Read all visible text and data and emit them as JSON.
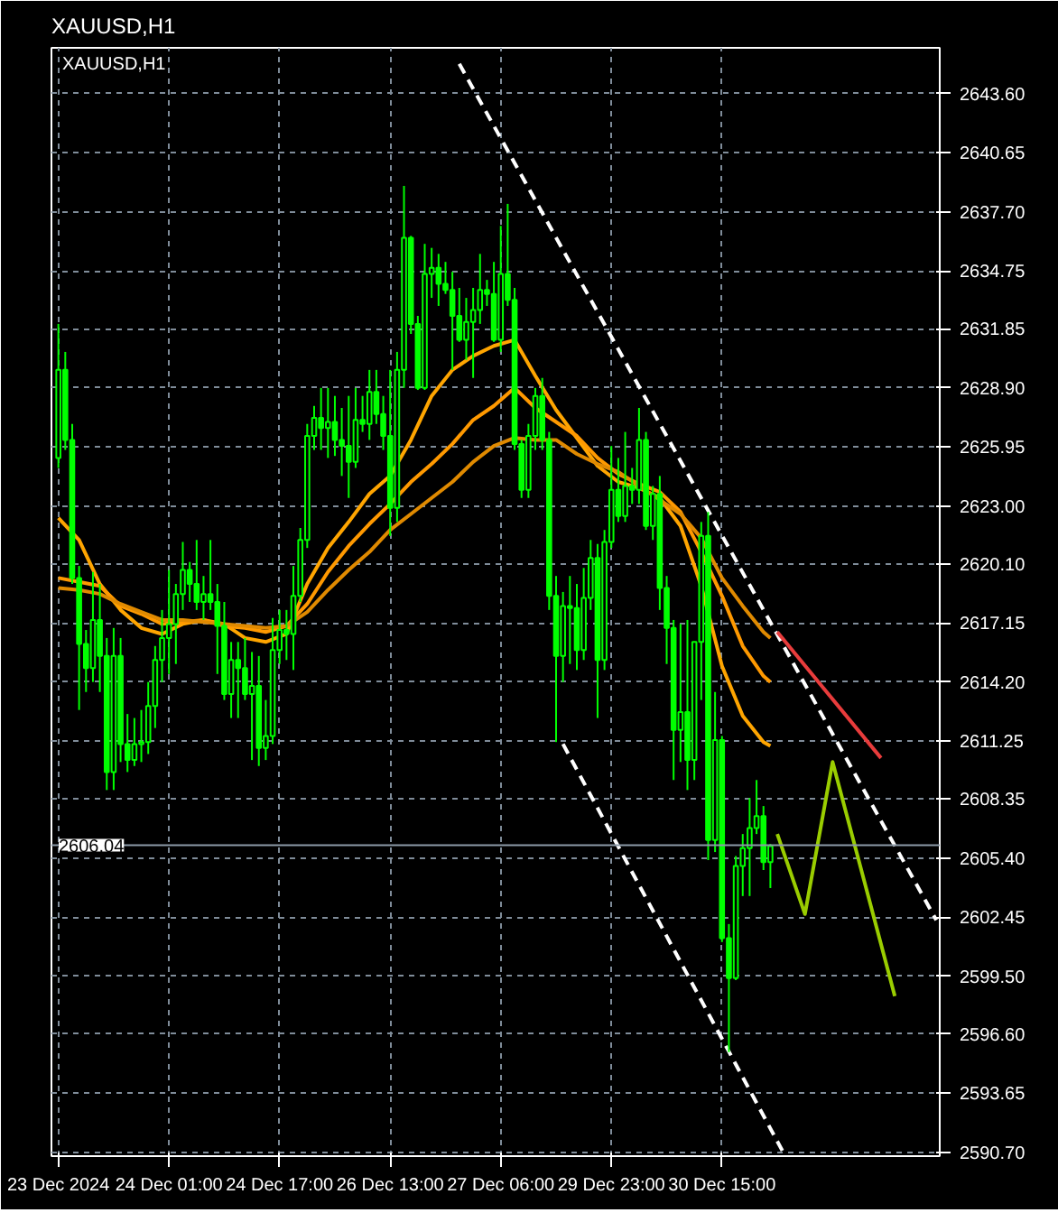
{
  "chart_data": {
    "type": "candlestick",
    "title": "XAUUSD,H1",
    "subtitle": "XAUUSD,H1",
    "color": "#00ff00",
    "categories": [
      "23 Dec 2024",
      null,
      null,
      null,
      null,
      null,
      null,
      null,
      null,
      null,
      null,
      null,
      null,
      null,
      null,
      null,
      "24 Dec 01:00",
      null,
      null,
      null,
      null,
      null,
      null,
      null,
      null,
      null,
      null,
      null,
      null,
      null,
      null,
      null,
      "24 Dec 17:00",
      null,
      null,
      null,
      null,
      null,
      null,
      null,
      null,
      null,
      null,
      null,
      null,
      null,
      null,
      null,
      "26 Dec 13:00",
      null,
      null,
      null,
      null,
      null,
      null,
      null,
      null,
      null,
      null,
      null,
      null,
      null,
      null,
      null,
      "27 Dec 06:00",
      null,
      null,
      null,
      null,
      null,
      null,
      null,
      null,
      null,
      null,
      null,
      null,
      null,
      null,
      null,
      "29 Dec 23:00",
      null,
      null,
      null,
      null,
      null,
      null,
      null,
      null,
      null,
      null,
      null,
      null,
      null,
      null,
      null,
      "30 Dec 15:00",
      null,
      null,
      null,
      null,
      null,
      null,
      null,
      null,
      null,
      null,
      null,
      null,
      null,
      null,
      null,
      null,
      null,
      null,
      null,
      null,
      null,
      null,
      null,
      null,
      null,
      null,
      null,
      null,
      null,
      null,
      null
    ],
    "ohlc": [
      [
        2625.4,
        2632.1,
        2624.9,
        2629.8
      ],
      [
        2629.8,
        2630.7,
        2625.8,
        2626.3
      ],
      [
        2626.3,
        2627.1,
        2619.1,
        2619.4
      ],
      [
        2619.4,
        2620.0,
        2612.8,
        2616.1
      ],
      [
        2616.1,
        2616.8,
        2613.7,
        2614.9
      ],
      [
        2614.9,
        2619.7,
        2614.2,
        2617.3
      ],
      [
        2617.3,
        2619.1,
        2613.7,
        2615.5
      ],
      [
        2615.5,
        2616.4,
        2608.8,
        2609.7
      ],
      [
        2609.7,
        2616.9,
        2608.8,
        2615.5
      ],
      [
        2615.5,
        2616.4,
        2610.2,
        2611.1
      ],
      [
        2611.1,
        2612.6,
        2609.7,
        2610.3
      ],
      [
        2610.3,
        2612.4,
        2610.0,
        2611.1
      ],
      [
        2611.1,
        2612.8,
        2610.2,
        2611.2
      ],
      [
        2611.2,
        2614.2,
        2610.6,
        2613.0
      ],
      [
        2613.0,
        2616.0,
        2611.9,
        2615.3
      ],
      [
        2615.3,
        2617.8,
        2614.2,
        2616.4
      ],
      [
        2616.4,
        2619.8,
        2614.6,
        2617.1
      ],
      [
        2617.1,
        2619.1,
        2615.1,
        2618.6
      ],
      [
        2618.6,
        2621.2,
        2617.8,
        2619.8
      ],
      [
        2619.8,
        2620.2,
        2618.2,
        2619.1
      ],
      [
        2619.1,
        2621.3,
        2617.8,
        2618.2
      ],
      [
        2618.2,
        2619.5,
        2617.3,
        2618.6
      ],
      [
        2618.6,
        2621.3,
        2617.8,
        2618.2
      ],
      [
        2618.2,
        2619.1,
        2614.6,
        2617.0
      ],
      [
        2617.0,
        2618.2,
        2613.3,
        2613.6
      ],
      [
        2613.6,
        2616.2,
        2612.4,
        2615.3
      ],
      [
        2615.3,
        2616.2,
        2612.4,
        2614.9
      ],
      [
        2614.9,
        2616.4,
        2613.3,
        2613.6
      ],
      [
        2613.6,
        2615.7,
        2610.3,
        2614.0
      ],
      [
        2614.0,
        2615.5,
        2610.0,
        2610.9
      ],
      [
        2610.9,
        2613.3,
        2610.3,
        2611.5
      ],
      [
        2611.5,
        2617.4,
        2611.1,
        2615.8
      ],
      [
        2615.8,
        2617.8,
        2615.1,
        2616.8
      ],
      [
        2616.8,
        2617.8,
        2615.3,
        2616.6
      ],
      [
        2616.6,
        2620.0,
        2614.8,
        2618.5
      ],
      [
        2618.5,
        2621.9,
        2618.2,
        2621.3
      ],
      [
        2621.3,
        2627.1,
        2620.9,
        2626.5
      ],
      [
        2626.5,
        2628.0,
        2625.8,
        2627.4
      ],
      [
        2627.4,
        2628.9,
        2625.8,
        2626.9
      ],
      [
        2626.9,
        2628.9,
        2625.4,
        2627.2
      ],
      [
        2627.2,
        2628.5,
        2625.5,
        2626.3
      ],
      [
        2626.3,
        2627.9,
        2624.5,
        2626.0
      ],
      [
        2626.0,
        2628.5,
        2623.4,
        2625.2
      ],
      [
        2625.2,
        2628.9,
        2624.9,
        2627.3
      ],
      [
        2627.3,
        2628.5,
        2626.7,
        2627.1
      ],
      [
        2627.1,
        2629.8,
        2626.3,
        2628.7
      ],
      [
        2628.7,
        2629.8,
        2627.1,
        2627.6
      ],
      [
        2627.6,
        2628.5,
        2625.8,
        2626.5
      ],
      [
        2626.5,
        2629.8,
        2621.5,
        2622.9
      ],
      [
        2622.9,
        2630.7,
        2622.2,
        2629.8
      ],
      [
        2629.8,
        2639.0,
        2628.9,
        2636.4
      ],
      [
        2636.4,
        2636.5,
        2631.6,
        2632.1
      ],
      [
        2632.1,
        2632.5,
        2628.8,
        2628.9
      ],
      [
        2628.9,
        2636.1,
        2628.8,
        2634.6
      ],
      [
        2634.6,
        2635.9,
        2633.4,
        2634.9
      ],
      [
        2634.9,
        2635.6,
        2633.0,
        2634.1
      ],
      [
        2634.1,
        2635.2,
        2633.6,
        2633.8
      ],
      [
        2633.8,
        2634.7,
        2629.8,
        2632.5
      ],
      [
        2632.5,
        2633.9,
        2631.2,
        2631.3
      ],
      [
        2631.3,
        2633.4,
        2630.3,
        2632.2
      ],
      [
        2632.2,
        2633.9,
        2629.4,
        2632.8
      ],
      [
        2632.8,
        2635.6,
        2632.1,
        2633.8
      ],
      [
        2633.8,
        2634.3,
        2633.0,
        2633.6
      ],
      [
        2633.6,
        2635.2,
        2631.2,
        2631.3
      ],
      [
        2631.3,
        2637.0,
        2630.7,
        2634.6
      ],
      [
        2634.6,
        2638.1,
        2633.0,
        2633.3
      ],
      [
        2633.3,
        2633.9,
        2625.8,
        2626.1
      ],
      [
        2626.1,
        2626.3,
        2623.4,
        2623.8
      ],
      [
        2623.8,
        2627.1,
        2623.4,
        2626.5
      ],
      [
        2626.5,
        2628.9,
        2625.8,
        2628.5
      ],
      [
        2628.5,
        2629.4,
        2625.8,
        2626.3
      ],
      [
        2626.3,
        2626.7,
        2617.8,
        2618.5
      ],
      [
        2618.5,
        2619.5,
        2611.2,
        2615.5
      ],
      [
        2615.5,
        2618.7,
        2614.2,
        2618.0
      ],
      [
        2618.0,
        2619.5,
        2615.1,
        2617.9
      ],
      [
        2617.9,
        2619.1,
        2614.8,
        2615.8
      ],
      [
        2615.8,
        2619.9,
        2615.3,
        2618.4
      ],
      [
        2618.4,
        2621.3,
        2617.8,
        2620.4
      ],
      [
        2620.4,
        2621.1,
        2612.4,
        2615.3
      ],
      [
        2615.3,
        2621.8,
        2614.8,
        2621.2
      ],
      [
        2621.2,
        2626.0,
        2620.9,
        2623.8
      ],
      [
        2623.8,
        2625.4,
        2622.2,
        2622.5
      ],
      [
        2622.5,
        2626.7,
        2622.2,
        2624.0
      ],
      [
        2624.0,
        2624.9,
        2623.1,
        2623.8
      ],
      [
        2623.8,
        2627.9,
        2623.1,
        2626.3
      ],
      [
        2626.3,
        2626.7,
        2621.8,
        2622.0
      ],
      [
        2622.0,
        2624.0,
        2621.3,
        2623.6
      ],
      [
        2623.6,
        2624.5,
        2617.8,
        2618.9
      ],
      [
        2618.9,
        2619.5,
        2615.1,
        2616.9
      ],
      [
        2616.9,
        2617.3,
        2609.3,
        2611.8
      ],
      [
        2611.8,
        2617.1,
        2610.2,
        2612.7
      ],
      [
        2612.7,
        2617.3,
        2608.8,
        2610.3
      ],
      [
        2610.3,
        2616.2,
        2609.3,
        2616.2
      ],
      [
        2616.2,
        2622.2,
        2613.3,
        2621.5
      ],
      [
        2621.5,
        2622.7,
        2605.3,
        2606.3
      ],
      [
        2606.3,
        2613.7,
        2605.7,
        2611.3
      ],
      [
        2611.3,
        2611.5,
        2601.2,
        2601.4
      ],
      [
        2601.4,
        2602.1,
        2595.7,
        2599.4
      ],
      [
        2599.4,
        2605.5,
        2599.3,
        2605.0
      ],
      [
        2605.0,
        2606.6,
        2603.5,
        2605.9
      ],
      [
        2605.9,
        2608.4,
        2603.5,
        2606.9
      ],
      [
        2606.9,
        2609.3,
        2606.6,
        2607.5
      ],
      [
        2607.5,
        2608.0,
        2604.8,
        2605.2
      ],
      [
        2605.2,
        2606.1,
        2603.9,
        2606.0
      ],
      null,
      null,
      null,
      null,
      null,
      null,
      null,
      null,
      null,
      null,
      null,
      null,
      null,
      null,
      null,
      null,
      null,
      null,
      null,
      null,
      null,
      null,
      null,
      null
    ],
    "series": [
      {
        "type": "line",
        "color": "#ffa500",
        "values": [
          2622.4,
          null,
          null,
          2621.3,
          null,
          null,
          2619.1,
          null,
          null,
          2617.8,
          null,
          null,
          2616.9,
          null,
          null,
          2616.6,
          null,
          null,
          2617.1,
          null,
          null,
          2617.3,
          null,
          null,
          2617.1,
          null,
          null,
          2616.4,
          null,
          null,
          2616.2,
          null,
          null,
          2616.6,
          null,
          null,
          2619.1,
          null,
          null,
          2620.9,
          null,
          null,
          2622.2,
          null,
          null,
          2623.6,
          null,
          null,
          2624.5,
          null,
          null,
          2626.3,
          null,
          null,
          2628.5,
          null,
          null,
          2629.8,
          null,
          null,
          2630.5,
          null,
          null,
          2631.0,
          null,
          null,
          2631.3,
          null,
          null,
          2629.5,
          null,
          null,
          2627.8,
          null,
          null,
          2626.4,
          null,
          null,
          2625.0,
          null,
          null,
          2624.2,
          null,
          null,
          2623.9,
          null,
          null,
          2623.4,
          null,
          null,
          2622.0,
          null,
          null,
          2619.0,
          null,
          null,
          2615.0,
          null,
          null,
          2612.5,
          null,
          null,
          2611.2,
          2611.0,
          null,
          null,
          null,
          null,
          null,
          null,
          null,
          null,
          null,
          null,
          null,
          null,
          null,
          null,
          null,
          null,
          null,
          null,
          null,
          null,
          null,
          null,
          null,
          null
        ]
      },
      {
        "type": "line",
        "color": "#ff9900",
        "values": [
          2619.4,
          null,
          null,
          2619.2,
          null,
          null,
          2619.0,
          null,
          null,
          2618.0,
          null,
          null,
          2617.6,
          null,
          null,
          2617.1,
          null,
          null,
          2617.2,
          null,
          null,
          2617.3,
          null,
          null,
          2617.0,
          null,
          null,
          2616.9,
          null,
          null,
          2616.7,
          null,
          null,
          2617.0,
          null,
          null,
          2618.1,
          null,
          null,
          2619.7,
          null,
          null,
          2621.0,
          null,
          null,
          2622.1,
          null,
          null,
          2623.1,
          null,
          null,
          2624.2,
          null,
          null,
          2625.1,
          null,
          null,
          2626.1,
          null,
          null,
          2627.3,
          null,
          null,
          2628.0,
          null,
          null,
          2628.9,
          null,
          null,
          2627.9,
          null,
          null,
          2627.2,
          null,
          null,
          2626.5,
          null,
          null,
          2625.4,
          null,
          null,
          2624.6,
          null,
          null,
          2624.1,
          null,
          null,
          2623.7,
          null,
          null,
          2622.7,
          null,
          null,
          2620.7,
          null,
          null,
          2618.5,
          null,
          null,
          2616.0,
          null,
          null,
          2614.5,
          2614.2,
          null,
          null,
          null,
          null,
          null,
          null,
          null,
          null,
          null,
          null,
          null,
          null,
          null,
          null,
          null,
          null,
          null,
          null,
          null,
          null,
          null,
          null,
          null,
          null
        ]
      },
      {
        "type": "line",
        "color": "#e08a00",
        "values": [
          2618.9,
          null,
          null,
          2618.8,
          null,
          null,
          2618.6,
          null,
          null,
          2618.1,
          null,
          null,
          2617.7,
          null,
          null,
          2617.3,
          null,
          null,
          2617.3,
          null,
          null,
          2617.2,
          null,
          null,
          2617.1,
          null,
          null,
          2617.0,
          null,
          null,
          2616.9,
          null,
          null,
          2617.0,
          null,
          null,
          2617.7,
          null,
          null,
          2618.8,
          null,
          null,
          2619.8,
          null,
          null,
          2620.7,
          null,
          null,
          2621.8,
          null,
          null,
          2622.6,
          null,
          null,
          2623.4,
          null,
          null,
          2624.2,
          null,
          null,
          2625.2,
          null,
          null,
          2626.0,
          null,
          null,
          2626.4,
          null,
          null,
          2626.3,
          null,
          null,
          2626.3,
          null,
          null,
          2625.6,
          null,
          null,
          2625.1,
          null,
          null,
          2624.7,
          null,
          null,
          2624.0,
          null,
          null,
          2623.3,
          null,
          null,
          2622.6,
          null,
          null,
          2621.4,
          null,
          null,
          2619.4,
          null,
          null,
          2618.0,
          null,
          null,
          2616.7,
          2616.4,
          null,
          null,
          null,
          null,
          null,
          null,
          null,
          null,
          null,
          null,
          null,
          null,
          null,
          null,
          null,
          null,
          null,
          null,
          null,
          null,
          null,
          null,
          null,
          null
        ]
      },
      {
        "type": "line",
        "color": "#ffffff",
        "line_style": "dashed",
        "values": [
          null,
          null,
          null,
          null,
          null,
          null,
          null,
          null,
          null,
          null,
          null,
          null,
          null,
          null,
          null,
          null,
          null,
          null,
          null,
          null,
          null,
          null,
          null,
          null,
          null,
          null,
          null,
          null,
          null,
          null,
          null,
          null,
          null,
          null,
          null,
          null,
          null,
          null,
          null,
          null,
          null,
          null,
          null,
          null,
          null,
          null,
          null,
          null,
          null,
          null,
          null,
          null,
          null,
          null,
          null,
          null,
          null,
          null,
          2645.1,
          null,
          null,
          null,
          null,
          null,
          null,
          null,
          null,
          null,
          null,
          null,
          null,
          null,
          null,
          null,
          null,
          null,
          null,
          null,
          null,
          null,
          null,
          null,
          null,
          null,
          null,
          null,
          null,
          null,
          null,
          null,
          null,
          null,
          null,
          null,
          null,
          null,
          null,
          null,
          null,
          null,
          null,
          null,
          null,
          null,
          null,
          null,
          null,
          null,
          null,
          null,
          null,
          null,
          null,
          null,
          null,
          null,
          null,
          null,
          null,
          null,
          null,
          null,
          null,
          null,
          null,
          null,
          null,
          2602.3
        ]
      },
      {
        "type": "line",
        "color": "#ffffff",
        "line_style": "dashed",
        "values": [
          null,
          null,
          null,
          null,
          null,
          null,
          null,
          null,
          null,
          null,
          null,
          null,
          null,
          null,
          null,
          null,
          null,
          null,
          null,
          null,
          null,
          null,
          null,
          null,
          null,
          null,
          null,
          null,
          null,
          null,
          null,
          null,
          null,
          null,
          null,
          null,
          null,
          null,
          null,
          null,
          null,
          null,
          null,
          null,
          null,
          null,
          null,
          null,
          null,
          null,
          null,
          null,
          null,
          null,
          null,
          null,
          null,
          null,
          null,
          null,
          null,
          null,
          null,
          null,
          null,
          null,
          null,
          null,
          null,
          null,
          null,
          null,
          null,
          2611.1,
          null,
          null,
          null,
          null,
          null,
          null,
          null,
          null,
          null,
          null,
          null,
          null,
          null,
          null,
          null,
          null,
          null,
          null,
          null,
          null,
          null,
          null,
          null,
          null,
          null,
          null,
          null,
          null,
          null,
          null,
          null,
          2590.6,
          null,
          null,
          null,
          null,
          null,
          null,
          null,
          null,
          null,
          null,
          null,
          null,
          null,
          null,
          null,
          null,
          null,
          null,
          null,
          null,
          null,
          null
        ]
      },
      {
        "type": "line",
        "color": "#e83c3c",
        "values": [
          null,
          null,
          null,
          null,
          null,
          null,
          null,
          null,
          null,
          null,
          null,
          null,
          null,
          null,
          null,
          null,
          null,
          null,
          null,
          null,
          null,
          null,
          null,
          null,
          null,
          null,
          null,
          null,
          null,
          null,
          null,
          null,
          null,
          null,
          null,
          null,
          null,
          null,
          null,
          null,
          null,
          null,
          null,
          null,
          null,
          null,
          null,
          null,
          null,
          null,
          null,
          null,
          null,
          null,
          null,
          null,
          null,
          null,
          null,
          null,
          null,
          null,
          null,
          null,
          null,
          null,
          null,
          null,
          null,
          null,
          null,
          null,
          null,
          null,
          null,
          null,
          null,
          null,
          null,
          null,
          null,
          null,
          null,
          null,
          null,
          null,
          null,
          null,
          null,
          null,
          null,
          null,
          null,
          null,
          null,
          null,
          null,
          null,
          null,
          null,
          null,
          null,
          null,
          null,
          2616.7,
          null,
          null,
          null,
          null,
          null,
          null,
          null,
          null,
          null,
          null,
          null,
          null,
          null,
          null,
          2610.4,
          null,
          null,
          null,
          null,
          null,
          null,
          null,
          null
        ]
      },
      {
        "type": "line",
        "color": "#9acd00",
        "values": [
          null,
          null,
          null,
          null,
          null,
          null,
          null,
          null,
          null,
          null,
          null,
          null,
          null,
          null,
          null,
          null,
          null,
          null,
          null,
          null,
          null,
          null,
          null,
          null,
          null,
          null,
          null,
          null,
          null,
          null,
          null,
          null,
          null,
          null,
          null,
          null,
          null,
          null,
          null,
          null,
          null,
          null,
          null,
          null,
          null,
          null,
          null,
          null,
          null,
          null,
          null,
          null,
          null,
          null,
          null,
          null,
          null,
          null,
          null,
          null,
          null,
          null,
          null,
          null,
          null,
          null,
          null,
          null,
          null,
          null,
          null,
          null,
          null,
          null,
          null,
          null,
          null,
          null,
          null,
          null,
          null,
          null,
          null,
          null,
          null,
          null,
          null,
          null,
          null,
          null,
          null,
          null,
          null,
          null,
          null,
          null,
          null,
          null,
          null,
          null,
          null,
          null,
          null,
          null,
          2606.6,
          null,
          null,
          null,
          2602.6,
          null,
          null,
          null,
          2610.2,
          null,
          null,
          null,
          null,
          null,
          null,
          null,
          null,
          2598.5,
          null,
          null,
          null,
          null,
          null,
          null
        ]
      }
    ],
    "ylim": [
      2590.5,
      2645.9
    ],
    "yticks": [
      {
        "value": 2590.7,
        "label": "2590.70"
      },
      {
        "value": 2593.65,
        "label": "2593.65"
      },
      {
        "value": 2596.6,
        "label": "2596.60"
      },
      {
        "value": 2599.5,
        "label": "2599.50"
      },
      {
        "value": 2602.45,
        "label": "2602.45"
      },
      {
        "value": 2605.4,
        "label": "2605.40"
      },
      {
        "value": 2608.35,
        "label": "2608.35"
      },
      {
        "value": 2611.25,
        "label": "2611.25"
      },
      {
        "value": 2614.2,
        "label": "2614.20"
      },
      {
        "value": 2617.15,
        "label": "2617.15"
      },
      {
        "value": 2620.1,
        "label": "2620.10"
      },
      {
        "value": 2623.0,
        "label": "2623.00"
      },
      {
        "value": 2625.95,
        "label": "2625.95"
      },
      {
        "value": 2628.9,
        "label": "2628.90"
      },
      {
        "value": 2631.85,
        "label": "2631.85"
      },
      {
        "value": 2634.75,
        "label": "2634.75"
      },
      {
        "value": 2637.7,
        "label": "2637.70"
      },
      {
        "value": 2640.65,
        "label": "2640.65"
      },
      {
        "value": 2643.6,
        "label": "2643.60"
      }
    ],
    "ref_lines": [
      {
        "axis": "y",
        "value": 2606.04,
        "label": "2606.04",
        "color": "#8c9aa8"
      }
    ],
    "grid": true
  }
}
